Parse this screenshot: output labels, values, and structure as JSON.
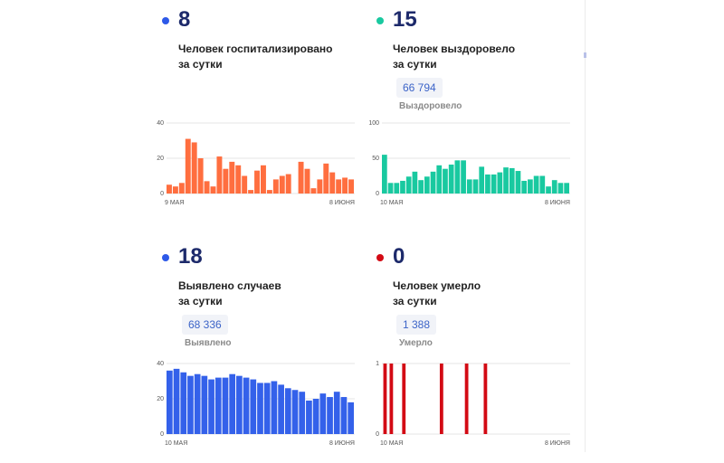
{
  "colors": {
    "hospitalized": "#ff6e3f",
    "recovered": "#19c9a0",
    "cases": "#3461ea",
    "deaths": "#d30a14",
    "number": "#1d2a6b"
  },
  "panels": {
    "hospitalized": {
      "value": "8",
      "caption_line1": "Человек госпитализировано",
      "caption_line2": "за сутки"
    },
    "recovered": {
      "value": "15",
      "caption_line1": "Человек выздоровело",
      "caption_line2": "за сутки",
      "total": "66 794",
      "total_label": "Выздоровело"
    },
    "cases": {
      "value": "18",
      "caption_line1": "Выявлено случаев",
      "caption_line2": "за сутки",
      "total": "68 336",
      "total_label": "Выявлено"
    },
    "deaths": {
      "value": "0",
      "caption_line1": "Человек умерло",
      "caption_line2": "за сутки",
      "total": "1 388",
      "total_label": "Умерло"
    }
  },
  "chart_data": [
    {
      "id": "hospitalized",
      "type": "bar",
      "x_start_label": "9 МАЯ",
      "x_end_label": "8 ИЮНЯ",
      "yticks": [
        0,
        20,
        40
      ],
      "ylim": [
        0,
        40
      ],
      "values": [
        5,
        4,
        6,
        31,
        29,
        20,
        7,
        4,
        21,
        14,
        18,
        16,
        10,
        2,
        13,
        16,
        2,
        8,
        10,
        11,
        0,
        18,
        14,
        3,
        8,
        17,
        12,
        8,
        9,
        8
      ]
    },
    {
      "id": "recovered",
      "type": "bar",
      "x_start_label": "10 МАЯ",
      "x_end_label": "8 ИЮНЯ",
      "yticks": [
        0,
        50,
        100
      ],
      "ylim": [
        0,
        100
      ],
      "values": [
        55,
        15,
        15,
        18,
        24,
        31,
        19,
        24,
        31,
        40,
        35,
        41,
        47,
        47,
        20,
        20,
        38,
        27,
        27,
        30,
        37,
        36,
        32,
        18,
        20,
        25,
        25,
        10,
        19,
        15,
        15
      ]
    },
    {
      "id": "cases",
      "type": "bar",
      "x_start_label": "10 МАЯ",
      "x_end_label": "8 ИЮНЯ",
      "yticks": [
        0,
        20,
        40
      ],
      "ylim": [
        0,
        40
      ],
      "values": [
        36,
        37,
        35,
        33,
        34,
        33,
        31,
        32,
        32,
        34,
        33,
        32,
        31,
        29,
        29,
        30,
        28,
        26,
        25,
        24,
        19,
        20,
        23,
        21,
        24,
        21,
        18
      ]
    },
    {
      "id": "deaths",
      "type": "bar",
      "x_start_label": "10 МАЯ",
      "x_end_label": "8 ИЮНЯ",
      "yticks": [
        0,
        1
      ],
      "ylim": [
        0,
        1
      ],
      "values": [
        1,
        1,
        0,
        1,
        0,
        0,
        0,
        0,
        0,
        1,
        0,
        0,
        0,
        1,
        0,
        0,
        1,
        0,
        0,
        0,
        0,
        0,
        0,
        0,
        0,
        0,
        0,
        0,
        0,
        0
      ]
    }
  ]
}
